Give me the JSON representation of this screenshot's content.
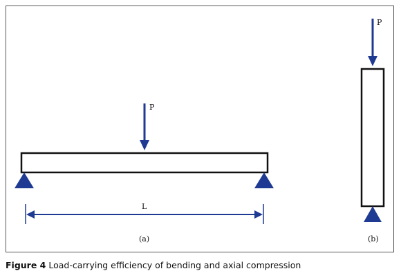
{
  "diagram": {
    "load_label": "P",
    "span_label": "L",
    "panel_a_label": "(a)",
    "panel_b_label": "(b)"
  },
  "caption": {
    "figure_number": "Figure 4",
    "text": "Load-carrying efficiency of bending and axial compression"
  },
  "colors": {
    "arrow": "#1f3a93",
    "support": "#1f3a93",
    "outline": "#111111"
  }
}
